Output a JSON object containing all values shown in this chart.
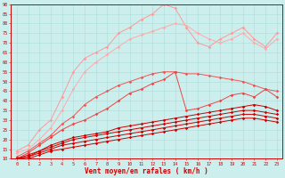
{
  "background_color": "#cceeed",
  "grid_color": "#aadddb",
  "tick_color": "#cc0000",
  "axis_color": "#cc0000",
  "xlabel": "Vent moyen/en rafales ( km/h )",
  "xlabel_color": "#cc0000",
  "xlim": [
    -0.5,
    23.5
  ],
  "ylim": [
    10,
    90
  ],
  "x_ticks": [
    0,
    1,
    2,
    3,
    4,
    5,
    6,
    7,
    8,
    9,
    10,
    11,
    12,
    13,
    14,
    15,
    16,
    17,
    18,
    19,
    20,
    21,
    22,
    23
  ],
  "y_ticks": [
    10,
    15,
    20,
    25,
    30,
    35,
    40,
    45,
    50,
    55,
    60,
    65,
    70,
    75,
    80,
    85,
    90
  ],
  "series": [
    {
      "color": "#ff9999",
      "lw": 0.7,
      "x": [
        0,
        1,
        2,
        3,
        4,
        5,
        6,
        7,
        8,
        9,
        10,
        11,
        12,
        13,
        14,
        15,
        16,
        17,
        18,
        19,
        20,
        21,
        22,
        23
      ],
      "y": [
        14,
        17,
        25,
        30,
        42,
        55,
        62,
        65,
        68,
        75,
        78,
        82,
        85,
        90,
        88,
        78,
        70,
        68,
        72,
        75,
        78,
        72,
        68,
        75
      ]
    },
    {
      "color": "#ffaaaa",
      "lw": 0.7,
      "x": [
        0,
        1,
        2,
        3,
        4,
        5,
        6,
        7,
        8,
        9,
        10,
        11,
        12,
        13,
        14,
        15,
        16,
        17,
        18,
        19,
        20,
        21,
        22,
        23
      ],
      "y": [
        13,
        15,
        20,
        26,
        35,
        46,
        55,
        60,
        64,
        68,
        72,
        74,
        76,
        78,
        80,
        79,
        75,
        72,
        70,
        72,
        75,
        70,
        67,
        72
      ]
    },
    {
      "color": "#ee5555",
      "lw": 0.7,
      "x": [
        0,
        1,
        2,
        3,
        4,
        5,
        6,
        7,
        8,
        9,
        10,
        11,
        12,
        13,
        14,
        15,
        16,
        17,
        18,
        19,
        20,
        21,
        22,
        23
      ],
      "y": [
        11,
        14,
        18,
        22,
        28,
        32,
        38,
        42,
        45,
        48,
        50,
        52,
        54,
        55,
        55,
        54,
        54,
        53,
        52,
        51,
        50,
        48,
        46,
        45
      ]
    },
    {
      "color": "#ee4444",
      "lw": 0.7,
      "x": [
        0,
        1,
        2,
        3,
        4,
        5,
        6,
        7,
        8,
        9,
        10,
        11,
        12,
        13,
        14,
        15,
        16,
        17,
        18,
        19,
        20,
        21,
        22,
        23
      ],
      "y": [
        10,
        13,
        17,
        21,
        25,
        28,
        30,
        33,
        36,
        40,
        44,
        46,
        49,
        51,
        55,
        35,
        36,
        38,
        40,
        43,
        44,
        42,
        46,
        42
      ]
    },
    {
      "color": "#cc0000",
      "lw": 0.7,
      "x": [
        0,
        1,
        2,
        3,
        4,
        5,
        6,
        7,
        8,
        9,
        10,
        11,
        12,
        13,
        14,
        15,
        16,
        17,
        18,
        19,
        20,
        21,
        22,
        23
      ],
      "y": [
        10,
        12,
        14,
        17,
        19,
        21,
        22,
        23,
        24,
        26,
        27,
        28,
        29,
        30,
        31,
        32,
        33,
        34,
        35,
        36,
        37,
        38,
        37,
        35
      ]
    },
    {
      "color": "#cc0000",
      "lw": 0.7,
      "x": [
        0,
        1,
        2,
        3,
        4,
        5,
        6,
        7,
        8,
        9,
        10,
        11,
        12,
        13,
        14,
        15,
        16,
        17,
        18,
        19,
        20,
        21,
        22,
        23
      ],
      "y": [
        10,
        11,
        14,
        16,
        18,
        20,
        21,
        22,
        23,
        24,
        25,
        26,
        27,
        28,
        29,
        30,
        31,
        32,
        33,
        34,
        35,
        35,
        34,
        33
      ]
    },
    {
      "color": "#cc0000",
      "lw": 0.7,
      "x": [
        0,
        1,
        2,
        3,
        4,
        5,
        6,
        7,
        8,
        9,
        10,
        11,
        12,
        13,
        14,
        15,
        16,
        17,
        18,
        19,
        20,
        21,
        22,
        23
      ],
      "y": [
        10,
        11,
        13,
        15,
        17,
        18,
        19,
        20,
        21,
        22,
        23,
        24,
        25,
        26,
        27,
        28,
        29,
        30,
        31,
        32,
        33,
        33,
        32,
        31
      ]
    },
    {
      "color": "#cc0000",
      "lw": 0.7,
      "x": [
        0,
        1,
        2,
        3,
        4,
        5,
        6,
        7,
        8,
        9,
        10,
        11,
        12,
        13,
        14,
        15,
        16,
        17,
        18,
        19,
        20,
        21,
        22,
        23
      ],
      "y": [
        10,
        10,
        12,
        14,
        15,
        16,
        17,
        18,
        19,
        20,
        21,
        22,
        23,
        24,
        25,
        26,
        27,
        28,
        29,
        30,
        31,
        31,
        30,
        29
      ]
    }
  ]
}
